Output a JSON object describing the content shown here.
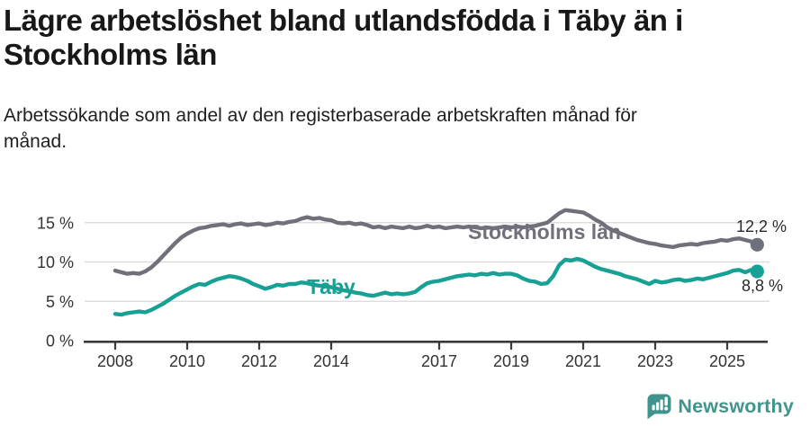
{
  "header": {
    "title_lines": [
      "Lägre arbetslöshet bland utlandsfödda i Täby än i",
      "Stockholms län"
    ],
    "subtitle_lines": [
      "Arbetssökande som andel av den registerbaserade arbetskraften månad för",
      "månad."
    ]
  },
  "chart_data": {
    "type": "line",
    "x_unit": "year (monthly data)",
    "x_start": 2008.0,
    "x_step_years": 0.16667,
    "xlim": [
      2007.15,
      2026.3
    ],
    "ylim": [
      0,
      17.6
    ],
    "grid": "horizontal",
    "x_ticks": {
      "values": [
        2008,
        2010,
        2012,
        2014,
        2017,
        2019,
        2021,
        2023,
        2025
      ],
      "labels": [
        "2008",
        "2010",
        "2012",
        "2014",
        "2017",
        "2019",
        "2021",
        "2023",
        "2025"
      ]
    },
    "y_ticks": {
      "values": [
        0,
        5,
        10,
        15
      ],
      "labels": [
        "0 %",
        "5 %",
        "10 %",
        "15 %"
      ]
    },
    "series": [
      {
        "name": "Stockholms län",
        "color": "#70707a",
        "end_value": 12.2,
        "end_label": "12,2 %",
        "values": [
          8.9,
          8.7,
          8.5,
          8.6,
          8.5,
          8.8,
          9.3,
          10.0,
          10.8,
          11.6,
          12.4,
          13.1,
          13.6,
          14.0,
          14.3,
          14.4,
          14.6,
          14.7,
          14.8,
          14.6,
          14.8,
          14.9,
          14.7,
          14.8,
          14.9,
          14.7,
          14.8,
          15.0,
          14.9,
          15.1,
          15.2,
          15.5,
          15.7,
          15.5,
          15.6,
          15.4,
          15.3,
          15.0,
          14.9,
          15.0,
          14.8,
          14.9,
          14.7,
          14.4,
          14.5,
          14.3,
          14.5,
          14.4,
          14.3,
          14.5,
          14.3,
          14.4,
          14.6,
          14.4,
          14.5,
          14.3,
          14.4,
          14.5,
          14.4,
          14.5,
          14.4,
          14.3,
          14.4,
          14.3,
          14.4,
          14.5,
          14.4,
          14.5,
          14.4,
          14.5,
          14.6,
          14.8,
          15.0,
          15.6,
          16.2,
          16.6,
          16.5,
          16.4,
          16.3,
          15.9,
          15.4,
          15.0,
          14.4,
          14.0,
          13.7,
          13.4,
          13.1,
          12.8,
          12.6,
          12.4,
          12.3,
          12.1,
          12.0,
          11.9,
          12.1,
          12.2,
          12.3,
          12.2,
          12.4,
          12.5,
          12.6,
          12.8,
          12.7,
          12.9,
          13.0,
          12.8,
          12.6,
          12.2
        ]
      },
      {
        "name": "Täby",
        "color": "#17a094",
        "end_value": 8.8,
        "end_label": "8,8 %",
        "values": [
          3.4,
          3.3,
          3.5,
          3.6,
          3.7,
          3.6,
          3.9,
          4.3,
          4.7,
          5.2,
          5.7,
          6.1,
          6.5,
          6.9,
          7.2,
          7.1,
          7.5,
          7.8,
          8.0,
          8.2,
          8.1,
          7.9,
          7.6,
          7.2,
          6.9,
          6.6,
          6.8,
          7.1,
          7.0,
          7.2,
          7.2,
          7.4,
          7.3,
          7.1,
          7.0,
          6.9,
          6.8,
          6.6,
          6.4,
          6.3,
          6.1,
          6.0,
          5.8,
          5.7,
          5.9,
          6.1,
          5.9,
          6.0,
          5.9,
          6.0,
          6.2,
          6.8,
          7.3,
          7.5,
          7.6,
          7.8,
          8.0,
          8.2,
          8.3,
          8.4,
          8.3,
          8.5,
          8.4,
          8.6,
          8.4,
          8.5,
          8.5,
          8.3,
          7.9,
          7.6,
          7.5,
          7.2,
          7.3,
          8.2,
          9.6,
          10.3,
          10.2,
          10.4,
          10.2,
          9.8,
          9.4,
          9.1,
          8.9,
          8.7,
          8.5,
          8.2,
          8.0,
          7.8,
          7.5,
          7.2,
          7.6,
          7.4,
          7.5,
          7.7,
          7.8,
          7.6,
          7.7,
          7.9,
          7.8,
          8.0,
          8.2,
          8.4,
          8.6,
          8.9,
          9.0,
          8.7,
          9.0,
          8.8
        ]
      }
    ]
  },
  "branding": {
    "name": "Newsworthy",
    "color": "#41948d"
  }
}
